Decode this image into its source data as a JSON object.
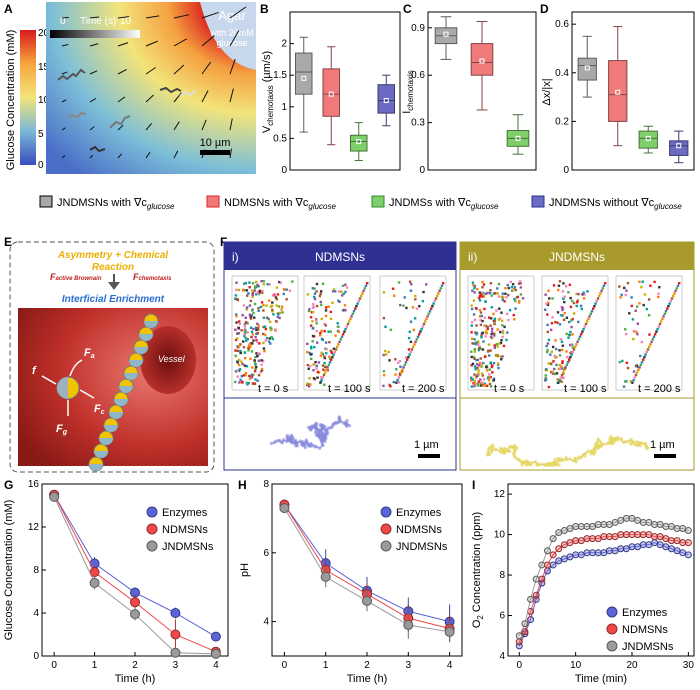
{
  "figure": {
    "panel_labels": [
      "A",
      "B",
      "C",
      "D",
      "E",
      "F",
      "G",
      "H",
      "I"
    ]
  },
  "panel_a": {
    "colorbar_label": "Glucose Concentration (mM)",
    "colorbar_ticks": [
      "20",
      "15",
      "10",
      "5",
      "0"
    ],
    "time_bar_label": "Time (s)",
    "time_start": "0",
    "time_end": "10",
    "agar_label": "Agar",
    "agar_sub1": "with 20mM",
    "agar_sub2": "glucose",
    "scale_label": "10 µm"
  },
  "legend": {
    "items": [
      {
        "label": "JNDMSNs with ∇c",
        "sub": "glucose",
        "color": "#a9a9a9"
      },
      {
        "label": "NDMSNs with ∇c",
        "sub": "glucose",
        "color": "#f07a7a"
      },
      {
        "label": "JNDMSs with ∇c",
        "sub": "glucose",
        "color": "#7fcf6a"
      },
      {
        "label": "JNDMSNs without ∇c",
        "sub": "glucose",
        "color": "#6b6bc4"
      }
    ]
  },
  "panel_e": {
    "title1": "Asymmetry + Chemical",
    "title2": "Reaction",
    "force1": "F",
    "force1_sub": "active Brownain",
    "force2": "F",
    "force2_sub": "chemotaxis",
    "enrichment": "Interficial Enrichment",
    "vessel": "Vessel",
    "f_labels": [
      "f",
      "F",
      "F",
      "F"
    ],
    "f_subs": [
      "",
      "a",
      "c",
      "g"
    ]
  },
  "panel_f": {
    "left_tag": "i)",
    "left_title": "NDMSNs",
    "right_tag": "ii)",
    "right_title": "JNDMSNs",
    "times": [
      "t = 0 s",
      "t = 100 s",
      "t = 200 s"
    ],
    "scale_label": "1 µm",
    "left_color": "#2e3192",
    "right_color": "#a99a2c"
  },
  "chart_data": [
    {
      "panel": "B",
      "type": "box",
      "ylabel": "V",
      "ylabel_sub": "chemotaxis",
      "ylabel_unit": " (µm/s)",
      "ylim": [
        0,
        2.5
      ],
      "yticks": [
        0,
        0.5,
        1.0,
        1.5,
        2.0
      ],
      "boxes": [
        {
          "series": "JNDMSNs with gradient",
          "min": 0.6,
          "q1": 1.2,
          "median": 1.55,
          "q3": 1.85,
          "max": 2.1,
          "mean": 1.45,
          "color": "#a9a9a9"
        },
        {
          "series": "NDMSNs with gradient",
          "min": 0.4,
          "q1": 0.85,
          "median": 1.2,
          "q3": 1.6,
          "max": 1.95,
          "mean": 1.2,
          "color": "#f07a7a"
        },
        {
          "series": "JNDMSs with gradient",
          "min": 0.15,
          "q1": 0.3,
          "median": 0.45,
          "q3": 0.55,
          "max": 0.75,
          "mean": 0.45,
          "color": "#7fcf6a"
        },
        {
          "series": "JNDMSNs without gradient",
          "min": 0.7,
          "q1": 0.9,
          "median": 1.1,
          "q3": 1.35,
          "max": 1.5,
          "mean": 1.1,
          "color": "#6b6bc4"
        }
      ]
    },
    {
      "panel": "C",
      "type": "box",
      "ylabel": "I",
      "ylabel_sub": "chemotaxis",
      "ylim": [
        0,
        1.0
      ],
      "yticks": [
        0,
        0.3,
        0.6,
        0.9
      ],
      "boxes": [
        {
          "series": "JNDMSNs with gradient",
          "min": 0.7,
          "q1": 0.8,
          "median": 0.85,
          "q3": 0.9,
          "max": 0.97,
          "mean": 0.86,
          "color": "#a9a9a9"
        },
        {
          "series": "NDMSNs with gradient",
          "min": 0.38,
          "q1": 0.6,
          "median": 0.68,
          "q3": 0.8,
          "max": 0.94,
          "mean": 0.69,
          "color": "#f07a7a"
        },
        {
          "series": "JNDMSs with gradient",
          "min": 0.1,
          "q1": 0.15,
          "median": 0.2,
          "q3": 0.25,
          "max": 0.35,
          "mean": 0.2,
          "color": "#7fcf6a"
        }
      ]
    },
    {
      "panel": "D",
      "type": "box",
      "ylabel": "Δx/|x|",
      "ylim": [
        0,
        0.65
      ],
      "yticks": [
        0,
        0.2,
        0.4,
        0.6
      ],
      "boxes": [
        {
          "series": "JNDMSNs with gradient",
          "min": 0.3,
          "q1": 0.37,
          "median": 0.43,
          "q3": 0.46,
          "max": 0.55,
          "mean": 0.42,
          "color": "#a9a9a9"
        },
        {
          "series": "NDMSNs with gradient",
          "min": 0.1,
          "q1": 0.2,
          "median": 0.31,
          "q3": 0.45,
          "max": 0.59,
          "mean": 0.32,
          "color": "#f07a7a"
        },
        {
          "series": "JNDMSs with gradient",
          "min": 0.07,
          "q1": 0.09,
          "median": 0.13,
          "q3": 0.16,
          "max": 0.18,
          "mean": 0.13,
          "color": "#7fcf6a"
        },
        {
          "series": "JNDMSNs without gradient",
          "min": 0.03,
          "q1": 0.06,
          "median": 0.1,
          "q3": 0.12,
          "max": 0.16,
          "mean": 0.1,
          "color": "#6b6bc4"
        }
      ]
    },
    {
      "panel": "G",
      "type": "line",
      "xlabel": "Time (h)",
      "ylabel": "Glucose Concentration (mM)",
      "xlim": [
        -0.3,
        4.3
      ],
      "ylim": [
        0,
        16
      ],
      "xticks": [
        0,
        1,
        2,
        3,
        4
      ],
      "yticks": [
        0,
        4,
        8,
        12,
        16
      ],
      "x": [
        0,
        1,
        2,
        3,
        4
      ],
      "series": [
        {
          "name": "Enzymes",
          "color": "#5a63d8",
          "values": [
            15,
            8.6,
            5.9,
            4.0,
            1.8
          ],
          "errors": [
            0.3,
            0.6,
            0.5,
            0.5,
            0.3
          ]
        },
        {
          "name": "NDMSNs",
          "color": "#f04848",
          "values": [
            15,
            7.8,
            5.0,
            2.0,
            0.4
          ],
          "errors": [
            0.3,
            0.6,
            0.7,
            1.4,
            0.3
          ]
        },
        {
          "name": "JNDMSNs",
          "color": "#9a9a9a",
          "values": [
            14.8,
            6.8,
            3.9,
            0.3,
            0.2
          ],
          "errors": [
            0.3,
            0.6,
            0.6,
            0.3,
            0.2
          ]
        }
      ]
    },
    {
      "panel": "H",
      "type": "line",
      "xlabel": "Time (h)",
      "ylabel": "pH",
      "xlim": [
        -0.3,
        4.3
      ],
      "ylim": [
        3,
        8
      ],
      "xticks": [
        0,
        1,
        2,
        3,
        4
      ],
      "yticks": [
        4,
        6,
        8
      ],
      "x": [
        0,
        1,
        2,
        3,
        4
      ],
      "series": [
        {
          "name": "Enzymes",
          "color": "#5a63d8",
          "values": [
            7.4,
            5.7,
            4.9,
            4.3,
            4.0
          ],
          "errors": [
            0.15,
            0.4,
            0.4,
            0.4,
            0.5
          ]
        },
        {
          "name": "NDMSNs",
          "color": "#f04848",
          "values": [
            7.4,
            5.5,
            4.8,
            4.1,
            3.8
          ],
          "errors": [
            0.15,
            0.3,
            0.3,
            0.4,
            0.4
          ]
        },
        {
          "name": "JNDMSNs",
          "color": "#9a9a9a",
          "values": [
            7.3,
            5.3,
            4.6,
            3.9,
            3.7
          ],
          "errors": [
            0.15,
            0.3,
            0.3,
            0.4,
            0.3
          ]
        }
      ]
    },
    {
      "panel": "I",
      "type": "scatter-line",
      "xlabel": "Time (min)",
      "ylabel": "O",
      "ylabel_sub": "2",
      "ylabel_rest": " Concentration (ppm)",
      "xlim": [
        -2,
        31
      ],
      "ylim": [
        4,
        12.5
      ],
      "xticks": [
        0,
        10,
        20,
        30
      ],
      "yticks": [
        4,
        6,
        8,
        10,
        12
      ],
      "series": [
        {
          "name": "Enzymes",
          "color": "#5a63d8",
          "x": [
            0,
            1,
            2,
            3,
            4,
            5,
            6,
            7,
            8,
            9,
            10,
            11,
            12,
            13,
            14,
            15,
            16,
            17,
            18,
            19,
            20,
            21,
            22,
            23,
            24,
            25,
            26,
            27,
            28,
            29,
            30
          ],
          "values": [
            4.5,
            5.1,
            5.8,
            6.8,
            7.6,
            8.2,
            8.5,
            8.7,
            8.8,
            8.9,
            9.0,
            9.0,
            9.1,
            9.1,
            9.1,
            9.1,
            9.2,
            9.2,
            9.3,
            9.3,
            9.4,
            9.4,
            9.5,
            9.5,
            9.6,
            9.5,
            9.4,
            9.3,
            9.2,
            9.1,
            9.0
          ]
        },
        {
          "name": "NDMSNs",
          "color": "#f04848",
          "x": [
            0,
            1,
            2,
            3,
            4,
            5,
            6,
            7,
            8,
            9,
            10,
            11,
            12,
            13,
            14,
            15,
            16,
            17,
            18,
            19,
            20,
            21,
            22,
            23,
            24,
            25,
            26,
            27,
            28,
            29,
            30
          ],
          "values": [
            4.7,
            5.2,
            6.2,
            7.0,
            7.8,
            8.5,
            9.0,
            9.3,
            9.5,
            9.6,
            9.7,
            9.7,
            9.8,
            9.8,
            9.8,
            9.9,
            9.9,
            9.9,
            10.0,
            10.0,
            10.0,
            10.0,
            10.0,
            10.0,
            9.9,
            9.9,
            9.8,
            9.7,
            9.7,
            9.6,
            9.6
          ]
        },
        {
          "name": "JNDMSNs",
          "color": "#9a9a9a",
          "x": [
            0,
            1,
            2,
            3,
            4,
            5,
            6,
            7,
            8,
            9,
            10,
            11,
            12,
            13,
            14,
            15,
            16,
            17,
            18,
            19,
            20,
            21,
            22,
            23,
            24,
            25,
            26,
            27,
            28,
            29,
            30
          ],
          "values": [
            5.0,
            5.6,
            6.8,
            7.8,
            8.5,
            9.2,
            9.8,
            10.1,
            10.2,
            10.3,
            10.4,
            10.4,
            10.4,
            10.4,
            10.5,
            10.5,
            10.5,
            10.6,
            10.7,
            10.8,
            10.8,
            10.7,
            10.6,
            10.6,
            10.5,
            10.5,
            10.4,
            10.4,
            10.3,
            10.3,
            10.2
          ]
        }
      ]
    }
  ]
}
